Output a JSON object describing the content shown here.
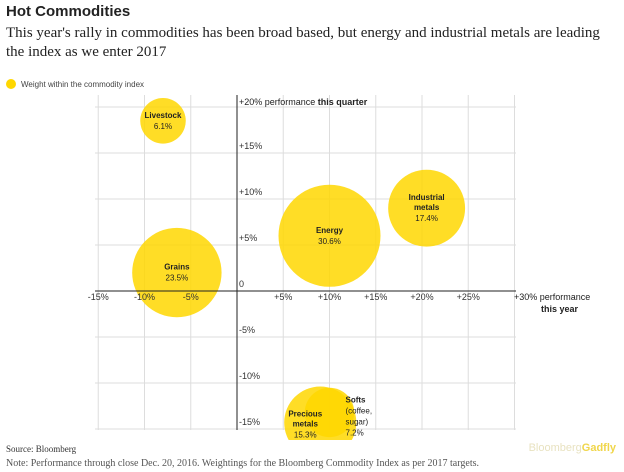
{
  "title": "Hot Commodities",
  "subtitle": "This year's rally in commodities has been broad based, but energy and industrial metals are leading the index as we enter 2017",
  "legend_label": "Weight within the commodity index",
  "source": "Source: Bloomberg",
  "note": "Note: Performance through close Dec. 20, 2016. Weightings for the Bloomberg Commodity Index as per 2017 targets.",
  "brand": {
    "part1": "Bloomberg",
    "part2": "Gadfly"
  },
  "colors": {
    "bubble": "#FFD700",
    "grid": "#dddddd",
    "axis": "#222222"
  },
  "chart_data": {
    "type": "scatter",
    "title": "Hot Commodities",
    "x_axis": {
      "label_prefix": "+30% performance",
      "label_bold": "this year",
      "range": [
        -15,
        30
      ],
      "ticks": [
        -15,
        -10,
        -5,
        5,
        10,
        15,
        20,
        25
      ],
      "tick_labels": [
        "-15%",
        "-10%",
        "-5%",
        "+5%",
        "+10%",
        "+15%",
        "+20%",
        "+25%"
      ]
    },
    "y_axis": {
      "label_prefix": "+20% performance",
      "label_bold": "this quarter",
      "range": [
        -15,
        20
      ],
      "ticks": [
        15,
        10,
        5,
        0,
        -5,
        -10,
        -15
      ],
      "tick_labels": [
        "+15%",
        "+10%",
        "+5%",
        "0",
        "-5%",
        "-10%",
        "-15%"
      ]
    },
    "points": [
      {
        "name": "Livestock",
        "weight_label": "6.1%",
        "x": -8,
        "y": 18.5,
        "weight": 6.1
      },
      {
        "name": "Grains",
        "weight_label": "23.5%",
        "x": -6.5,
        "y": 2,
        "weight": 23.5
      },
      {
        "name": "Energy",
        "weight_label": "30.6%",
        "x": 10,
        "y": 6,
        "weight": 30.6
      },
      {
        "name": "Industrial",
        "name_line2": "metals",
        "weight_label": "17.4%",
        "x": 20.5,
        "y": 9,
        "weight": 17.4
      },
      {
        "name": "Precious",
        "name_line2": "metals",
        "weight_label": "15.3%",
        "x": 9,
        "y": -14.3,
        "weight": 15.3
      },
      {
        "name": "Softs",
        "name_line2": "(coffee,",
        "name_line3": "sugar)",
        "weight_label": "7.2%",
        "x": 10,
        "y": -13.2,
        "weight": 7.2
      }
    ]
  }
}
